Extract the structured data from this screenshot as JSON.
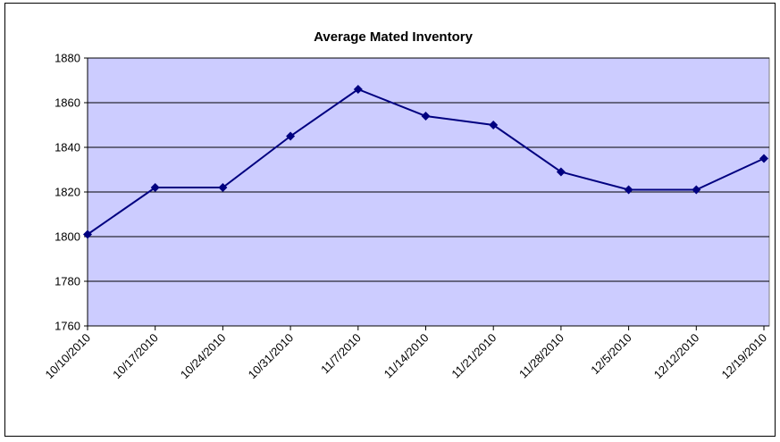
{
  "chart_data": {
    "type": "line",
    "title": "Average Mated Inventory",
    "categories": [
      "10/10/2010",
      "10/17/2010",
      "10/24/2010",
      "10/31/2010",
      "11/7/2010",
      "11/14/2010",
      "11/21/2010",
      "11/28/2010",
      "12/5/2010",
      "12/12/2010",
      "12/19/2010"
    ],
    "series": [
      {
        "name": "Average Mated Inventory",
        "color": "#000080",
        "values": [
          1801,
          1822,
          1822,
          1845,
          1866,
          1854,
          1850,
          1829,
          1821,
          1821,
          1835
        ]
      }
    ],
    "ylim": [
      1760,
      1880
    ],
    "yticks": [
      1760,
      1780,
      1800,
      1820,
      1840,
      1860,
      1880
    ],
    "grid": true
  }
}
